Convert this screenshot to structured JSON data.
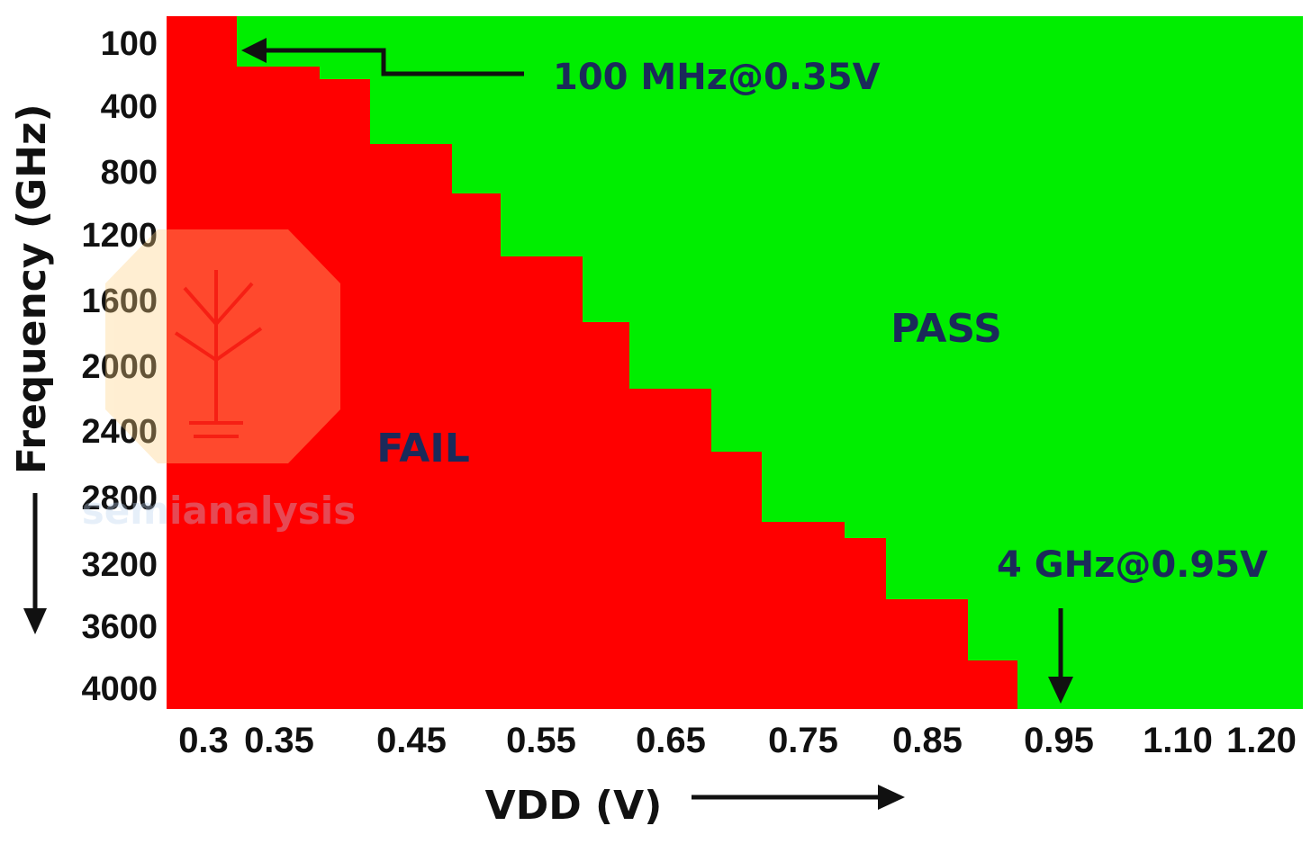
{
  "chart_data": {
    "type": "shmoo",
    "title": "",
    "xlabel": "VDD (V)",
    "ylabel": "Frequency (GHz)",
    "x_ticks": [
      "0.3",
      "0.35",
      "0.45",
      "0.55",
      "0.65",
      "0.75",
      "0.85",
      "0.95",
      "1.10",
      "1.20"
    ],
    "y_ticks": [
      "100",
      "400",
      "800",
      "1200",
      "1600",
      "2000",
      "2400",
      "2800",
      "3200",
      "3600",
      "4000"
    ],
    "y_direction": "down",
    "regions": {
      "fail_label": "FAIL",
      "pass_label": "PASS"
    },
    "pass_fail_boundary": [
      {
        "vdd": 0.35,
        "max_freq": 100
      },
      {
        "vdd": 0.4,
        "max_freq": 300
      },
      {
        "vdd": 0.45,
        "max_freq": 600
      },
      {
        "vdd": 0.5,
        "max_freq": 1000
      },
      {
        "vdd": 0.55,
        "max_freq": 1200
      },
      {
        "vdd": 0.6,
        "max_freq": 1600
      },
      {
        "vdd": 0.65,
        "max_freq": 2000
      },
      {
        "vdd": 0.7,
        "max_freq": 2400
      },
      {
        "vdd": 0.75,
        "max_freq": 2800
      },
      {
        "vdd": 0.8,
        "max_freq": 3000
      },
      {
        "vdd": 0.85,
        "max_freq": 3200
      },
      {
        "vdd": 0.9,
        "max_freq": 3600
      },
      {
        "vdd": 0.95,
        "max_freq": 4000
      }
    ],
    "annotations": [
      {
        "text": "100 MHz@0.35V",
        "vdd": 0.35,
        "freq": 100
      },
      {
        "text": "4 GHz@0.95V",
        "vdd": 0.95,
        "freq": 4000
      }
    ],
    "colors": {
      "fail": "#ff0000",
      "pass": "#00ee00",
      "annotation_text": "#1b2a5a",
      "axis_text": "#111111"
    }
  },
  "watermark": {
    "text": "semianalysis"
  }
}
